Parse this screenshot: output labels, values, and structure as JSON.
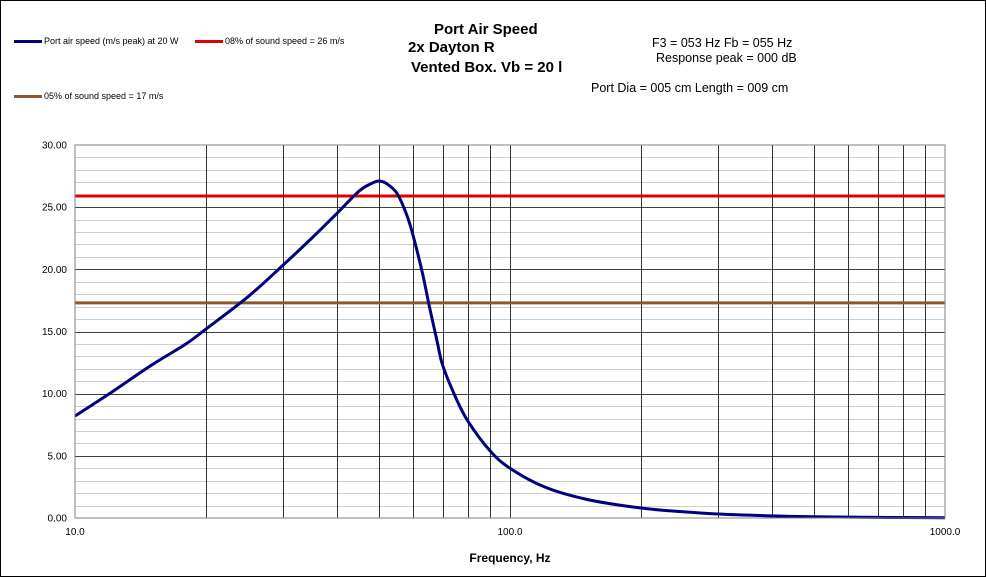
{
  "chart_data": {
    "type": "line",
    "title_lines": [
      "Port Air Speed",
      "2x Dayton R",
      "Vented Box, Vb = 20 l"
    ],
    "info": {
      "line1": "F3 = 053 Hz  Fb = 055 Hz",
      "line2": "Response peak = 000 dB",
      "line3": "Port Dia = 005 cm  Length = 009 cm"
    },
    "xlabel": "Frequency, Hz",
    "ylabel": "",
    "xscale": "log",
    "xlim": [
      10,
      1000
    ],
    "ylim": [
      0,
      30
    ],
    "x_ticks": [
      "10.0",
      "100.0",
      "1000.0"
    ],
    "y_ticks": [
      "0.00",
      "5.00",
      "10.00",
      "15.00",
      "20.00",
      "25.00",
      "30.00"
    ],
    "grid": true,
    "legend_position": "top-left",
    "series": [
      {
        "name": "Port air speed (m/s peak) at 20 W",
        "color": "#000080",
        "x": [
          10,
          12,
          15,
          18,
          20,
          25,
          30,
          35,
          40,
          45,
          48,
          50,
          52,
          55,
          58,
          60,
          63,
          65,
          68,
          70,
          75,
          80,
          90,
          100,
          120,
          150,
          200,
          250,
          300,
          400,
          500,
          700,
          1000
        ],
        "y": [
          8.2,
          10.0,
          12.3,
          14.0,
          15.2,
          17.8,
          20.3,
          22.5,
          24.5,
          26.3,
          26.9,
          27.1,
          26.9,
          26.1,
          24.3,
          22.6,
          19.6,
          17.3,
          14.2,
          12.3,
          9.7,
          7.8,
          5.4,
          4.0,
          2.5,
          1.5,
          0.8,
          0.5,
          0.32,
          0.17,
          0.1,
          0.05,
          0.02
        ]
      },
      {
        "name": "08% of sound speed = 26 m/s",
        "color": "#E00000",
        "x": [
          10,
          1000
        ],
        "y": [
          25.9,
          25.9
        ]
      },
      {
        "name": "05% of sound speed = 17 m/s",
        "color": "#8B5A2B",
        "x": [
          10,
          1000
        ],
        "y": [
          17.3,
          17.3
        ]
      }
    ]
  }
}
